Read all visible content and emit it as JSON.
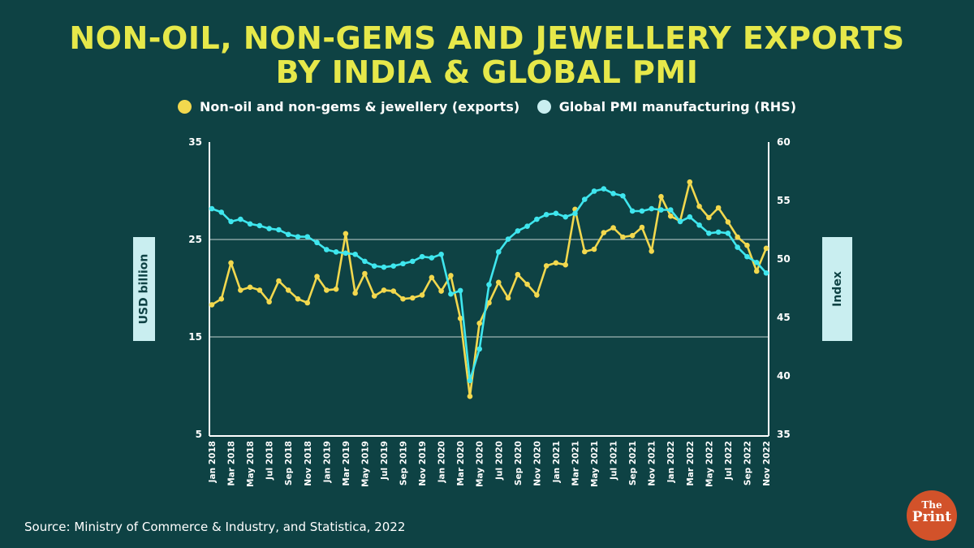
{
  "title": [
    "NON-OIL, NON-GEMS AND JEWELLERY EXPORTS",
    "BY INDIA & GLOBAL PMI"
  ],
  "source": "Source: Ministry of Commerce & Industry, and Statistica, 2022",
  "logo": {
    "line1": "The",
    "line2": "Print"
  },
  "chart_data": {
    "type": "line",
    "title": "NON-OIL, NON-GEMS AND JEWELLERY EXPORTS BY INDIA & GLOBAL PMI",
    "ylabel": "USD billion",
    "y2label": "Index",
    "ylim": [
      5,
      35
    ],
    "y2lim": [
      35,
      60
    ],
    "yticks": [
      5,
      15,
      25,
      35
    ],
    "y2ticks": [
      35,
      40,
      45,
      50,
      55,
      60
    ],
    "grid": "horizontal",
    "legend_position": "top",
    "x": [
      "Jan 2018",
      "Feb 2018",
      "Mar 2018",
      "Apr 2018",
      "May 2018",
      "Jun 2018",
      "Jul 2018",
      "Aug 2018",
      "Sep 2018",
      "Oct 2018",
      "Nov 2018",
      "Dec 2018",
      "Jan 2019",
      "Feb 2019",
      "Mar 2019",
      "Apr 2019",
      "May 2019",
      "Jun 2019",
      "Jul 2019",
      "Aug 2019",
      "Sep 2019",
      "Oct 2019",
      "Nov 2019",
      "Dec 2019",
      "Jan 2020",
      "Feb 2020",
      "Mar 2020",
      "Apr 2020",
      "May 2020",
      "Jun 2020",
      "Jul 2020",
      "Aug 2020",
      "Sep 2020",
      "Oct 2020",
      "Nov 2020",
      "Dec 2020",
      "Jan 2021",
      "Feb 2021",
      "Mar 2021",
      "Apr 2021",
      "May 2021",
      "Jun 2021",
      "Jul 2021",
      "Aug 2021",
      "Sep 2021",
      "Oct 2021",
      "Nov 2021",
      "Dec 2021",
      "Jan 2022",
      "Feb 2022",
      "Mar 2022",
      "Apr 2022",
      "May 2022",
      "Jun 2022",
      "Jul 2022",
      "Aug 2022",
      "Sep 2022",
      "Oct 2022",
      "Nov 2022"
    ],
    "xtick_labels": [
      "Jan 2018",
      "Mar 2018",
      "May 2018",
      "Jul 2018",
      "Sep 2018",
      "Nov 2018",
      "Jan 2019",
      "Mar 2019",
      "May 2019",
      "Jul 2019",
      "Sep 2019",
      "Nov 2019",
      "Jan 2020",
      "Mar 2020",
      "May 2020",
      "Jul 2020",
      "Sep 2020",
      "Nov 2020",
      "Jan 2021",
      "Mar 2021",
      "May 2021",
      "Jul 2021",
      "Sep 2021",
      "Nov 2021",
      "Jan 2022",
      "Mar 2022",
      "May 2022",
      "Jul 2022",
      "Sep 2022",
      "Nov 2022"
    ],
    "series": [
      {
        "name": "Non-oil and non-gems & jewellery (exports)",
        "axis": "left",
        "color": "#f2d84e",
        "values": [
          18.3,
          18.9,
          22.6,
          19.8,
          20.1,
          19.8,
          18.6,
          20.75,
          19.8,
          18.9,
          18.5,
          21.2,
          19.8,
          19.9,
          25.6,
          19.5,
          21.5,
          19.2,
          19.8,
          19.7,
          18.9,
          19.0,
          19.3,
          21.1,
          19.7,
          21.3,
          16.9,
          8.9,
          16.4,
          18.5,
          20.6,
          19.0,
          21.4,
          20.4,
          19.3,
          22.3,
          22.6,
          22.4,
          28.1,
          23.75,
          24.0,
          25.7,
          26.2,
          25.25,
          25.4,
          26.25,
          23.8,
          29.4,
          27.4,
          26.9,
          30.9,
          28.4,
          27.25,
          28.25,
          26.8,
          25.25,
          24.4,
          21.75,
          24.1
        ]
      },
      {
        "name": "Global PMI manufacturing (RHS)",
        "axis": "right",
        "color": "#3fe6ee",
        "values": [
          54.3,
          54.0,
          53.2,
          53.4,
          53.0,
          52.85,
          52.6,
          52.5,
          52.1,
          51.9,
          51.9,
          51.4,
          50.8,
          50.6,
          50.5,
          50.4,
          49.8,
          49.4,
          49.3,
          49.4,
          49.6,
          49.8,
          50.2,
          50.1,
          50.4,
          47.0,
          47.3,
          39.6,
          42.3,
          47.8,
          50.6,
          51.7,
          52.4,
          52.8,
          53.4,
          53.8,
          53.9,
          53.6,
          53.9,
          55.1,
          55.8,
          56.0,
          55.6,
          55.4,
          54.1,
          54.1,
          54.3,
          54.2,
          54.2,
          53.2,
          53.6,
          52.9,
          52.2,
          52.3,
          52.2,
          51.0,
          50.2,
          49.7,
          48.8
        ]
      }
    ]
  }
}
